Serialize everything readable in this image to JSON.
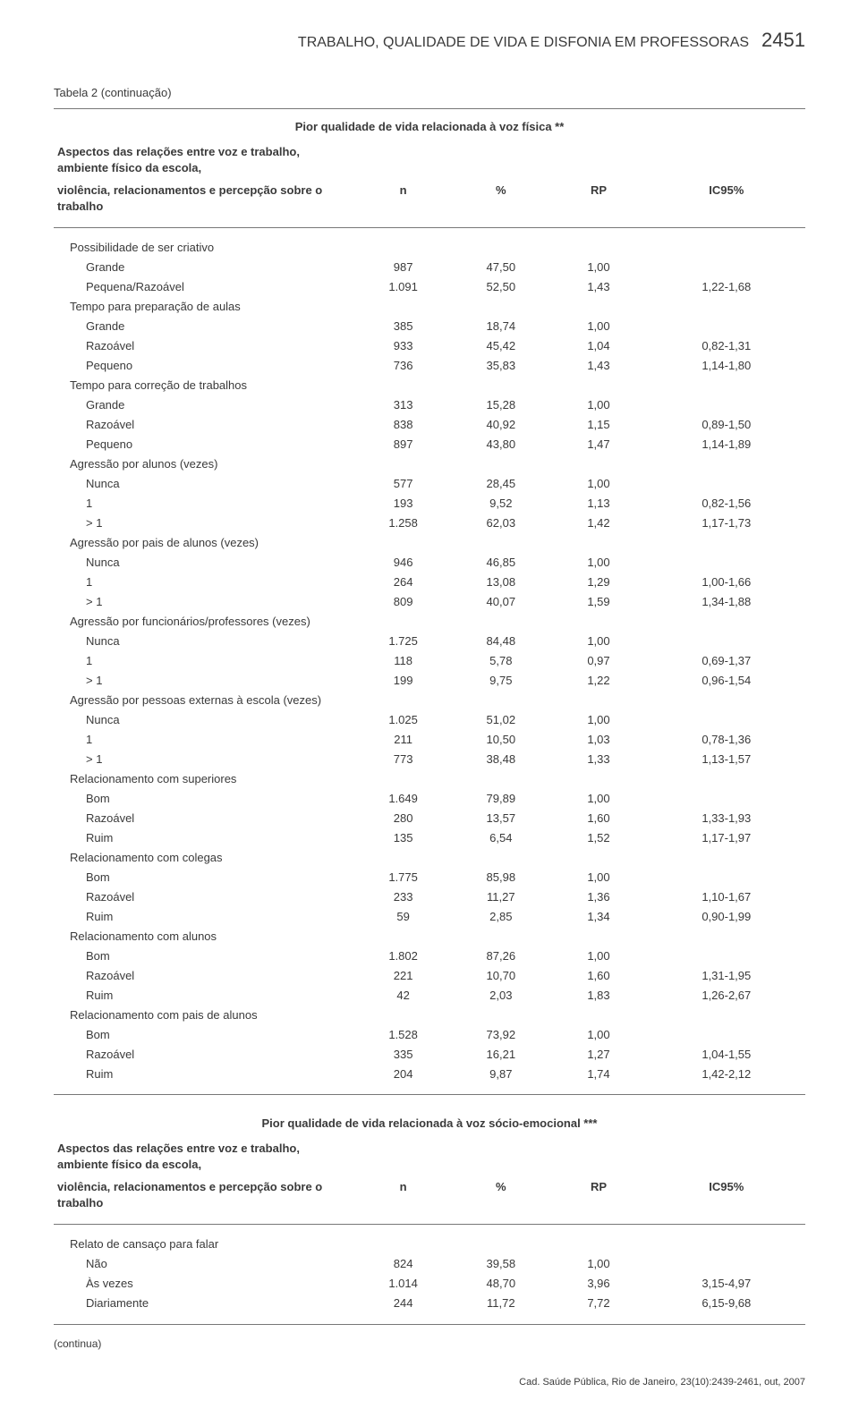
{
  "meta": {
    "running_title": "TRABALHO, QUALIDADE DE VIDA E DISFONIA EM PROFESSORAS",
    "page_number": "2451",
    "footer": "Cad. Saúde Pública, Rio de Janeiro, 23(10):2439-2461, out, 2007",
    "continua": "(continua)"
  },
  "table": {
    "caption": "Tabela 2 (continuação)",
    "section1": {
      "subtitle": "Pior qualidade de vida relacionada à voz física **",
      "subhead_line1": "Aspectos das relações entre voz e trabalho, ambiente físico da escola,",
      "subhead_line2": "violência, relacionamentos e percepção sobre o trabalho",
      "col_n": "n",
      "col_pct": "%",
      "col_rp": "RP",
      "col_ic": "IC95%",
      "groups": [
        {
          "label": "Possibilidade de ser criativo",
          "rows": [
            {
              "label": "Grande",
              "n": "987",
              "pct": "47,50",
              "rp": "1,00",
              "ic": ""
            },
            {
              "label": "Pequena/Razoável",
              "n": "1.091",
              "pct": "52,50",
              "rp": "1,43",
              "ic": "1,22-1,68"
            }
          ]
        },
        {
          "label": "Tempo para preparação de aulas",
          "rows": [
            {
              "label": "Grande",
              "n": "385",
              "pct": "18,74",
              "rp": "1,00",
              "ic": ""
            },
            {
              "label": "Razoável",
              "n": "933",
              "pct": "45,42",
              "rp": "1,04",
              "ic": "0,82-1,31"
            },
            {
              "label": "Pequeno",
              "n": "736",
              "pct": "35,83",
              "rp": "1,43",
              "ic": "1,14-1,80"
            }
          ]
        },
        {
          "label": "Tempo para correção de trabalhos",
          "rows": [
            {
              "label": "Grande",
              "n": "313",
              "pct": "15,28",
              "rp": "1,00",
              "ic": ""
            },
            {
              "label": "Razoável",
              "n": "838",
              "pct": "40,92",
              "rp": "1,15",
              "ic": "0,89-1,50"
            },
            {
              "label": "Pequeno",
              "n": "897",
              "pct": "43,80",
              "rp": "1,47",
              "ic": "1,14-1,89"
            }
          ]
        },
        {
          "label": "Agressão por alunos (vezes)",
          "rows": [
            {
              "label": "Nunca",
              "n": "577",
              "pct": "28,45",
              "rp": "1,00",
              "ic": ""
            },
            {
              "label": "1",
              "n": "193",
              "pct": "9,52",
              "rp": "1,13",
              "ic": "0,82-1,56"
            },
            {
              "label": "> 1",
              "n": "1.258",
              "pct": "62,03",
              "rp": "1,42",
              "ic": "1,17-1,73"
            }
          ]
        },
        {
          "label": "Agressão por pais de alunos (vezes)",
          "rows": [
            {
              "label": "Nunca",
              "n": "946",
              "pct": "46,85",
              "rp": "1,00",
              "ic": ""
            },
            {
              "label": "1",
              "n": "264",
              "pct": "13,08",
              "rp": "1,29",
              "ic": "1,00-1,66"
            },
            {
              "label": "> 1",
              "n": "809",
              "pct": "40,07",
              "rp": "1,59",
              "ic": "1,34-1,88"
            }
          ]
        },
        {
          "label": "Agressão por funcionários/professores (vezes)",
          "rows": [
            {
              "label": "Nunca",
              "n": "1.725",
              "pct": "84,48",
              "rp": "1,00",
              "ic": ""
            },
            {
              "label": "1",
              "n": "118",
              "pct": "5,78",
              "rp": "0,97",
              "ic": "0,69-1,37"
            },
            {
              "label": "> 1",
              "n": "199",
              "pct": "9,75",
              "rp": "1,22",
              "ic": "0,96-1,54"
            }
          ]
        },
        {
          "label": "Agressão por pessoas externas à escola (vezes)",
          "rows": [
            {
              "label": "Nunca",
              "n": "1.025",
              "pct": "51,02",
              "rp": "1,00",
              "ic": ""
            },
            {
              "label": "1",
              "n": "211",
              "pct": "10,50",
              "rp": "1,03",
              "ic": "0,78-1,36"
            },
            {
              "label": "> 1",
              "n": "773",
              "pct": "38,48",
              "rp": "1,33",
              "ic": "1,13-1,57"
            }
          ]
        },
        {
          "label": "Relacionamento com superiores",
          "rows": [
            {
              "label": "Bom",
              "n": "1.649",
              "pct": "79,89",
              "rp": "1,00",
              "ic": ""
            },
            {
              "label": "Razoável",
              "n": "280",
              "pct": "13,57",
              "rp": "1,60",
              "ic": "1,33-1,93"
            },
            {
              "label": "Ruim",
              "n": "135",
              "pct": "6,54",
              "rp": "1,52",
              "ic": "1,17-1,97"
            }
          ]
        },
        {
          "label": "Relacionamento com colegas",
          "rows": [
            {
              "label": "Bom",
              "n": "1.775",
              "pct": "85,98",
              "rp": "1,00",
              "ic": ""
            },
            {
              "label": "Razoável",
              "n": "233",
              "pct": "11,27",
              "rp": "1,36",
              "ic": "1,10-1,67"
            },
            {
              "label": "Ruim",
              "n": "59",
              "pct": "2,85",
              "rp": "1,34",
              "ic": "0,90-1,99"
            }
          ]
        },
        {
          "label": "Relacionamento com alunos",
          "rows": [
            {
              "label": "Bom",
              "n": "1.802",
              "pct": "87,26",
              "rp": "1,00",
              "ic": ""
            },
            {
              "label": "Razoável",
              "n": "221",
              "pct": "10,70",
              "rp": "1,60",
              "ic": "1,31-1,95"
            },
            {
              "label": "Ruim",
              "n": "42",
              "pct": "2,03",
              "rp": "1,83",
              "ic": "1,26-2,67"
            }
          ]
        },
        {
          "label": "Relacionamento com pais de alunos",
          "rows": [
            {
              "label": "Bom",
              "n": "1.528",
              "pct": "73,92",
              "rp": "1,00",
              "ic": ""
            },
            {
              "label": "Razoável",
              "n": "335",
              "pct": "16,21",
              "rp": "1,27",
              "ic": "1,04-1,55"
            },
            {
              "label": "Ruim",
              "n": "204",
              "pct": "9,87",
              "rp": "1,74",
              "ic": "1,42-2,12"
            }
          ]
        }
      ]
    },
    "section2": {
      "subtitle": "Pior qualidade de vida relacionada à voz sócio-emocional ***",
      "subhead_line1": "Aspectos das relações entre voz e trabalho, ambiente físico da escola,",
      "subhead_line2": "violência, relacionamentos e percepção sobre o trabalho",
      "col_n": "n",
      "col_pct": "%",
      "col_rp": "RP",
      "col_ic": "IC95%",
      "groups": [
        {
          "label": "Relato de cansaço para falar",
          "rows": [
            {
              "label": "Não",
              "n": "824",
              "pct": "39,58",
              "rp": "1,00",
              "ic": ""
            },
            {
              "label": "Às vezes",
              "n": "1.014",
              "pct": "48,70",
              "rp": "3,96",
              "ic": "3,15-4,97"
            },
            {
              "label": "Diariamente",
              "n": "244",
              "pct": "11,72",
              "rp": "7,72",
              "ic": "6,15-9,68"
            }
          ]
        }
      ]
    }
  },
  "style": {
    "text_color": "#3a3a3a",
    "rule_color": "#777777",
    "background": "#ffffff",
    "body_fontsize_pt": 10,
    "caption_fontsize_pt": 10,
    "pageno_fontsize_pt": 17,
    "running_title_fontsize_pt": 8.5
  }
}
